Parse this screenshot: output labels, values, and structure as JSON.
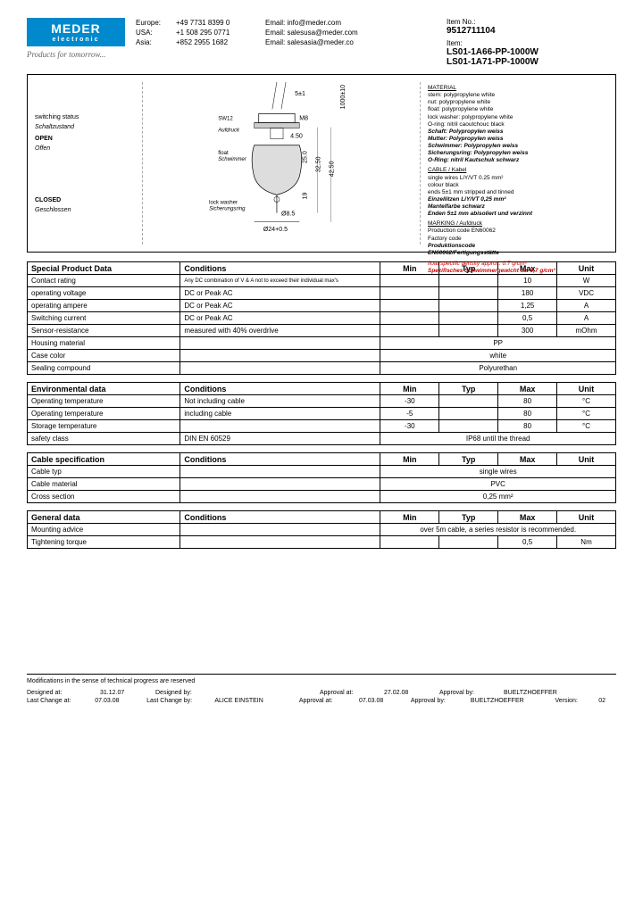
{
  "logo": {
    "main": "MEDER",
    "sub": "electronic",
    "tagline": "Products for tomorrow..."
  },
  "contacts": [
    {
      "region": "Europe:",
      "phone": "+49 7731 8399 0",
      "email": "Email: info@meder.com"
    },
    {
      "region": "USA:",
      "phone": "+1 508 295 0771",
      "email": "Email: salesusa@meder.com"
    },
    {
      "region": "Asia:",
      "phone": "+852 2955 1682",
      "email": "Email: salesasia@meder.co"
    }
  ],
  "item": {
    "no_label": "Item No.:",
    "no": "9512711104",
    "label": "Item:",
    "name1": "LS01-1A66-PP-1000W",
    "name2": "LS01-1A71-PP-1000W"
  },
  "diagram": {
    "switching_label": "switching status",
    "switching_label_de": "Schaltzustand",
    "open": "OPEN",
    "open_de": "Offen",
    "closed": "CLOSED",
    "closed_de": "Geschlossen",
    "material_title": "MATERIAL",
    "mat_lines": [
      "stem: polypropylene white",
      "nut: polypropylene white",
      "float: polypropylene white",
      "lock washer: polypropylene white",
      "O-ring: nitril caoutchouc black"
    ],
    "mat_de": [
      "Schaft: Polypropylen weiss",
      "Mutter: Polypropylen weiss",
      "Schwimmer: Polypropylen weiss",
      "Sicherungsring: Polypropylen weiss",
      "O-Ring: nitril Kautschuk schwarz"
    ],
    "cable_title": "CABLE / Kabel",
    "cable_lines": [
      "single wires LiY/VT 0.25 mm²",
      "colour black",
      "ends 5±1 mm stripped and tinned"
    ],
    "cable_de": [
      "Einzellitzen LiY/VT 0,25 mm²",
      "Mantelfarbe schwarz",
      "Enden 5±1 mm abisoliert und verzinnt"
    ],
    "marking_title": "MARKING / Aufdruck",
    "marking_lines": [
      "Production code EN60062",
      "Factory code"
    ],
    "marking_de": [
      "Produktionscode",
      "EN60062/Fertigungsstätte"
    ],
    "density": "float specific density approx. 0.7 g/cm³",
    "density_de": "Spezifisches Schwimmergewicht ca. 0,7 g/cm³"
  },
  "tables": {
    "special": {
      "title": "Special Product Data",
      "rows": [
        {
          "p": "Contact rating",
          "c": "Any DC combination of V & A not to exceed their individual max's",
          "min": "",
          "typ": "",
          "max": "10",
          "unit": "W"
        },
        {
          "p": "operating voltage",
          "c": "DC or Peak AC",
          "min": "",
          "typ": "",
          "max": "180",
          "unit": "VDC"
        },
        {
          "p": "operating ampere",
          "c": "DC or Peak AC",
          "min": "",
          "typ": "",
          "max": "1,25",
          "unit": "A"
        },
        {
          "p": "Switching current",
          "c": "DC or Peak AC",
          "min": "",
          "typ": "",
          "max": "0,5",
          "unit": "A"
        },
        {
          "p": "Sensor-resistance",
          "c": "measured with 40% overdrive",
          "min": "",
          "typ": "",
          "max": "300",
          "unit": "mOhm"
        },
        {
          "p": "Housing material",
          "c": "",
          "span": "PP"
        },
        {
          "p": "Case color",
          "c": "",
          "span": "white"
        },
        {
          "p": "Sealing compound",
          "c": "",
          "span": "Polyurethan"
        }
      ]
    },
    "env": {
      "title": "Environmental data",
      "rows": [
        {
          "p": "Operating temperature",
          "c": "Not including cable",
          "min": "-30",
          "typ": "",
          "max": "80",
          "unit": "°C"
        },
        {
          "p": "Operating temperature",
          "c": "including cable",
          "min": "-5",
          "typ": "",
          "max": "80",
          "unit": "°C"
        },
        {
          "p": "Storage temperature",
          "c": "",
          "min": "-30",
          "typ": "",
          "max": "80",
          "unit": "°C"
        },
        {
          "p": "safety class",
          "c": "DIN EN 60529",
          "span": "IP68 until the thread"
        }
      ]
    },
    "cable": {
      "title": "Cable specification",
      "rows": [
        {
          "p": "Cable typ",
          "c": "",
          "span": "single wires"
        },
        {
          "p": "Cable material",
          "c": "",
          "span": "PVC"
        },
        {
          "p": "Cross section",
          "c": "",
          "span": "0,25 mm²"
        }
      ]
    },
    "general": {
      "title": "General data",
      "rows": [
        {
          "p": "Mounting advice",
          "c": "",
          "span": "over 5m cable, a series resistor is recommended."
        },
        {
          "p": "Tightening torque",
          "c": "",
          "min": "",
          "typ": "",
          "max": "0,5",
          "unit": "Nm"
        }
      ]
    }
  },
  "footer": {
    "note": "Modifications in the sense of technical progress are reserved",
    "r1": {
      "a": "Designed at:",
      "b": "31.12.07",
      "c": "Designed by:",
      "d": "",
      "e": "Approval at:",
      "f": "27.02.08",
      "g": "Approval by:",
      "h": "BUELTZHOEFFER"
    },
    "r2": {
      "a": "Last Change at:",
      "b": "07.03.08",
      "c": "Last Change by:",
      "d": "ALICE EINSTEIN",
      "e": "Approval at:",
      "f": "07.03.08",
      "g": "Approval by:",
      "h": "BUELTZHOEFFER",
      "v": "Version:",
      "vn": "02"
    }
  }
}
